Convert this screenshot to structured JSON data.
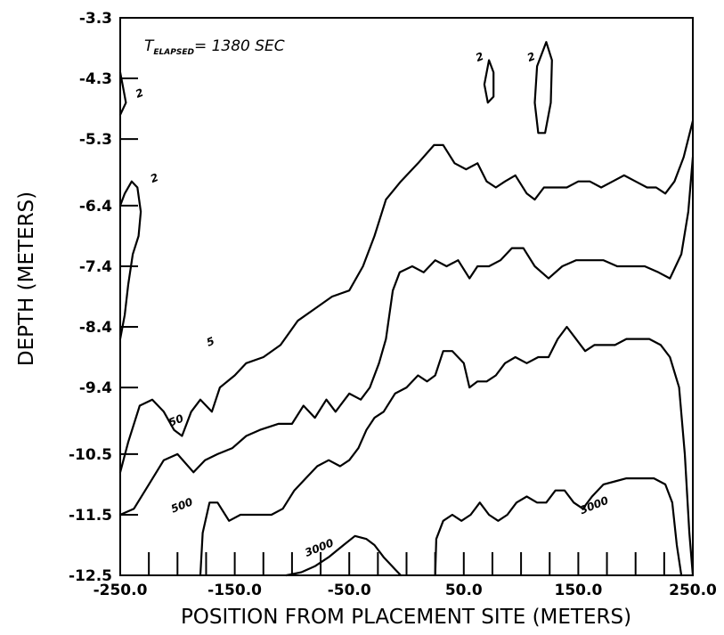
{
  "chart_data": {
    "type": "contour",
    "xlabel": "POSITION FROM PLACEMENT SITE (METERS)",
    "ylabel": "DEPTH (METERS)",
    "xlim": [
      -250.0,
      250.0
    ],
    "ylim": [
      -12.5,
      -3.3
    ],
    "x_ticks": [
      "-250.0",
      "-150.0",
      "-50.0",
      "50.0",
      "150.0",
      "250.0"
    ],
    "x_tick_values": [
      -250,
      -150,
      -50,
      50,
      150,
      250
    ],
    "y_ticks": [
      "-3.3",
      "-4.3",
      "-5.3",
      "-6.4",
      "-7.4",
      "-8.4",
      "-9.4",
      "-10.5",
      "-11.5",
      "-12.5"
    ],
    "y_tick_values": [
      -3.3,
      -4.3,
      -5.3,
      -6.4,
      -7.4,
      -8.4,
      -9.4,
      -10.5,
      -11.5,
      -12.5
    ],
    "annotation": {
      "prefix": "T",
      "subscript": "ELAPSED",
      "text": "= 1380 SEC"
    },
    "contours": [
      {
        "level": "5",
        "label": "5",
        "label_at": [
          -170,
          -8.7
        ],
        "points": [
          [
            -250,
            -10.8
          ],
          [
            -243,
            -10.3
          ],
          [
            -233,
            -9.7
          ],
          [
            -222,
            -9.6
          ],
          [
            -212,
            -9.8
          ],
          [
            -203,
            -10.1
          ],
          [
            -196,
            -10.2
          ],
          [
            -188,
            -9.8
          ],
          [
            -180,
            -9.6
          ],
          [
            -170,
            -9.8
          ],
          [
            -163,
            -9.4
          ],
          [
            -150,
            -9.2
          ],
          [
            -140,
            -9.0
          ],
          [
            -125,
            -8.9
          ],
          [
            -110,
            -8.7
          ],
          [
            -95,
            -8.3
          ],
          [
            -80,
            -8.1
          ],
          [
            -65,
            -7.9
          ],
          [
            -50,
            -7.8
          ],
          [
            -38,
            -7.4
          ],
          [
            -28,
            -6.9
          ],
          [
            -18,
            -6.3
          ],
          [
            -5,
            -6.0
          ],
          [
            10,
            -5.7
          ],
          [
            24,
            -5.4
          ],
          [
            32,
            -5.4
          ],
          [
            42,
            -5.7
          ],
          [
            52,
            -5.8
          ],
          [
            62,
            -5.7
          ],
          [
            70,
            -6.0
          ],
          [
            78,
            -6.1
          ],
          [
            86,
            -6.0
          ],
          [
            95,
            -5.9
          ],
          [
            105,
            -6.2
          ],
          [
            112,
            -6.3
          ],
          [
            120,
            -6.1
          ],
          [
            130,
            -6.1
          ],
          [
            140,
            -6.1
          ],
          [
            150,
            -6.0
          ],
          [
            160,
            -6.0
          ],
          [
            170,
            -6.1
          ],
          [
            180,
            -6.0
          ],
          [
            190,
            -5.9
          ],
          [
            200,
            -6.0
          ],
          [
            210,
            -6.1
          ],
          [
            218,
            -6.1
          ],
          [
            226,
            -6.2
          ],
          [
            234,
            -6.0
          ],
          [
            242,
            -5.6
          ],
          [
            250,
            -5.0
          ]
        ]
      },
      {
        "level": "50",
        "label": "50",
        "label_at": [
          -200,
          -10.0
        ],
        "points": [
          [
            -250,
            -11.5
          ],
          [
            -238,
            -11.4
          ],
          [
            -225,
            -11.0
          ],
          [
            -212,
            -10.6
          ],
          [
            -200,
            -10.5
          ],
          [
            -186,
            -10.8
          ],
          [
            -176,
            -10.6
          ],
          [
            -165,
            -10.5
          ],
          [
            -152,
            -10.4
          ],
          [
            -140,
            -10.2
          ],
          [
            -128,
            -10.1
          ],
          [
            -112,
            -10.0
          ],
          [
            -100,
            -10.0
          ],
          [
            -90,
            -9.7
          ],
          [
            -80,
            -9.9
          ],
          [
            -70,
            -9.6
          ],
          [
            -62,
            -9.8
          ],
          [
            -50,
            -9.5
          ],
          [
            -40,
            -9.6
          ],
          [
            -32,
            -9.4
          ],
          [
            -24,
            -9.0
          ],
          [
            -18,
            -8.6
          ],
          [
            -12,
            -7.8
          ],
          [
            -6,
            -7.5
          ],
          [
            5,
            -7.4
          ],
          [
            15,
            -7.5
          ],
          [
            25,
            -7.3
          ],
          [
            35,
            -7.4
          ],
          [
            45,
            -7.3
          ],
          [
            55,
            -7.6
          ],
          [
            62,
            -7.4
          ],
          [
            72,
            -7.4
          ],
          [
            82,
            -7.3
          ],
          [
            92,
            -7.1
          ],
          [
            102,
            -7.1
          ],
          [
            112,
            -7.4
          ],
          [
            124,
            -7.6
          ],
          [
            136,
            -7.4
          ],
          [
            148,
            -7.3
          ],
          [
            160,
            -7.3
          ],
          [
            172,
            -7.3
          ],
          [
            184,
            -7.4
          ],
          [
            196,
            -7.4
          ],
          [
            208,
            -7.4
          ],
          [
            220,
            -7.5
          ],
          [
            230,
            -7.6
          ],
          [
            240,
            -7.2
          ],
          [
            246,
            -6.5
          ],
          [
            250,
            -5.6
          ]
        ]
      },
      {
        "level": "500",
        "label": "500",
        "label_at": [
          -195,
          -11.4
        ],
        "points": [
          [
            -180,
            -12.5
          ],
          [
            -178,
            -11.8
          ],
          [
            -172,
            -11.3
          ],
          [
            -165,
            -11.3
          ],
          [
            -155,
            -11.6
          ],
          [
            -145,
            -11.5
          ],
          [
            -132,
            -11.5
          ],
          [
            -118,
            -11.5
          ],
          [
            -108,
            -11.4
          ],
          [
            -98,
            -11.1
          ],
          [
            -88,
            -10.9
          ],
          [
            -78,
            -10.7
          ],
          [
            -68,
            -10.6
          ],
          [
            -58,
            -10.7
          ],
          [
            -50,
            -10.6
          ],
          [
            -42,
            -10.4
          ],
          [
            -35,
            -10.1
          ],
          [
            -28,
            -9.9
          ],
          [
            -20,
            -9.8
          ],
          [
            -10,
            -9.5
          ],
          [
            0,
            -9.4
          ],
          [
            10,
            -9.2
          ],
          [
            18,
            -9.3
          ],
          [
            25,
            -9.2
          ],
          [
            32,
            -8.8
          ],
          [
            40,
            -8.8
          ],
          [
            50,
            -9.0
          ],
          [
            55,
            -9.4
          ],
          [
            62,
            -9.3
          ],
          [
            70,
            -9.3
          ],
          [
            78,
            -9.2
          ],
          [
            86,
            -9.0
          ],
          [
            95,
            -8.9
          ],
          [
            105,
            -9.0
          ],
          [
            115,
            -8.9
          ],
          [
            124,
            -8.9
          ],
          [
            132,
            -8.6
          ],
          [
            140,
            -8.4
          ],
          [
            148,
            -8.6
          ],
          [
            156,
            -8.8
          ],
          [
            164,
            -8.7
          ],
          [
            172,
            -8.7
          ],
          [
            182,
            -8.7
          ],
          [
            192,
            -8.6
          ],
          [
            202,
            -8.6
          ],
          [
            212,
            -8.6
          ],
          [
            222,
            -8.7
          ],
          [
            230,
            -8.9
          ],
          [
            238,
            -9.4
          ],
          [
            243,
            -10.5
          ],
          [
            247,
            -11.8
          ],
          [
            250,
            -12.5
          ]
        ]
      },
      {
        "level": "3000",
        "label": "3000",
        "label_at": [
          -75,
          -12.1
        ],
        "points": [
          [
            -105,
            -12.5
          ],
          [
            -92,
            -12.45
          ],
          [
            -80,
            -12.35
          ],
          [
            -68,
            -12.2
          ],
          [
            -55,
            -12.0
          ],
          [
            -45,
            -11.85
          ],
          [
            -35,
            -11.9
          ],
          [
            -28,
            -12.0
          ],
          [
            -20,
            -12.2
          ],
          [
            -10,
            -12.4
          ],
          [
            -5,
            -12.5
          ]
        ]
      },
      {
        "level": "3000",
        "label": "3000",
        "label_at": [
          165,
          -11.4
        ],
        "points": [
          [
            25,
            -12.5
          ],
          [
            26,
            -11.9
          ],
          [
            32,
            -11.6
          ],
          [
            40,
            -11.5
          ],
          [
            48,
            -11.6
          ],
          [
            56,
            -11.5
          ],
          [
            64,
            -11.3
          ],
          [
            72,
            -11.5
          ],
          [
            80,
            -11.6
          ],
          [
            88,
            -11.5
          ],
          [
            96,
            -11.3
          ],
          [
            105,
            -11.2
          ],
          [
            114,
            -11.3
          ],
          [
            122,
            -11.3
          ],
          [
            130,
            -11.1
          ],
          [
            138,
            -11.1
          ],
          [
            146,
            -11.3
          ],
          [
            154,
            -11.4
          ],
          [
            162,
            -11.2
          ],
          [
            172,
            -11.0
          ],
          [
            182,
            -10.95
          ],
          [
            192,
            -10.9
          ],
          [
            204,
            -10.9
          ],
          [
            216,
            -10.9
          ],
          [
            226,
            -11.0
          ],
          [
            232,
            -11.3
          ],
          [
            236,
            -12.0
          ],
          [
            240,
            -12.5
          ]
        ]
      },
      {
        "level": "2",
        "label": "2",
        "label_at": [
          -232,
          -4.6
        ],
        "points": [
          [
            -250,
            -4.2
          ],
          [
            -248,
            -4.4
          ],
          [
            -245,
            -4.7
          ],
          [
            -250,
            -4.9
          ]
        ]
      },
      {
        "level": "2",
        "label": "2",
        "label_at": [
          -219,
          -6.0
        ],
        "points": [
          [
            -250,
            -6.4
          ],
          [
            -246,
            -6.2
          ],
          [
            -240,
            -6.0
          ],
          [
            -235,
            -6.1
          ],
          [
            -232,
            -6.5
          ],
          [
            -234,
            -6.9
          ],
          [
            -239,
            -7.2
          ],
          [
            -243,
            -7.7
          ],
          [
            -246,
            -8.2
          ],
          [
            -250,
            -8.6
          ]
        ]
      },
      {
        "level": "2",
        "label": "2",
        "label_at": [
          65,
          -4.0
        ],
        "points": [
          [
            72,
            -4.0
          ],
          [
            68,
            -4.4
          ],
          [
            71,
            -4.7
          ],
          [
            76,
            -4.6
          ],
          [
            76,
            -4.2
          ],
          [
            72,
            -4.0
          ]
        ]
      },
      {
        "level": "2",
        "label": "2",
        "label_at": [
          110,
          -4.0
        ],
        "points": [
          [
            122,
            -3.7
          ],
          [
            114,
            -4.1
          ],
          [
            112,
            -4.7
          ],
          [
            115,
            -5.2
          ],
          [
            121,
            -5.2
          ],
          [
            126,
            -4.7
          ],
          [
            127,
            -4.0
          ],
          [
            122,
            -3.7
          ]
        ]
      }
    ]
  }
}
